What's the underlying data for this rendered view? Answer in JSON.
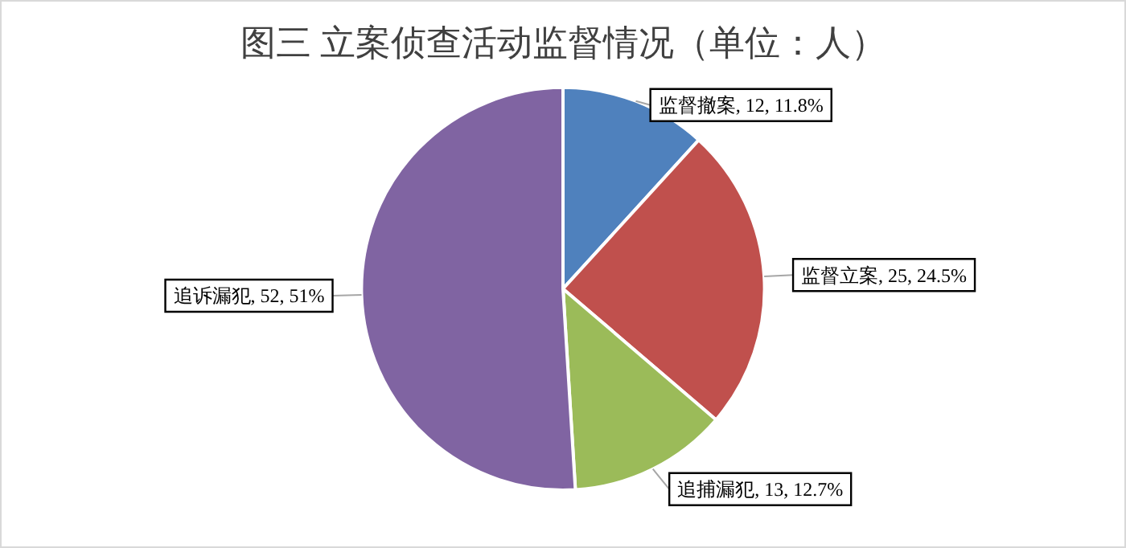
{
  "chart_data": {
    "type": "pie",
    "title": "图三 立案侦查活动监督情况（单位：人）",
    "categories": [
      "监督撤案",
      "监督立案",
      "追捕漏犯",
      "追诉漏犯"
    ],
    "values": [
      12,
      25,
      13,
      52
    ],
    "colors": [
      "#4f81bd",
      "#c0504d",
      "#9bbb59",
      "#8064a2"
    ],
    "value_labels": [
      ", 12, 11.8%",
      ", 25, 24.5%",
      ", 13, 12.7%",
      ", 52, 51%"
    ],
    "legend": false
  }
}
